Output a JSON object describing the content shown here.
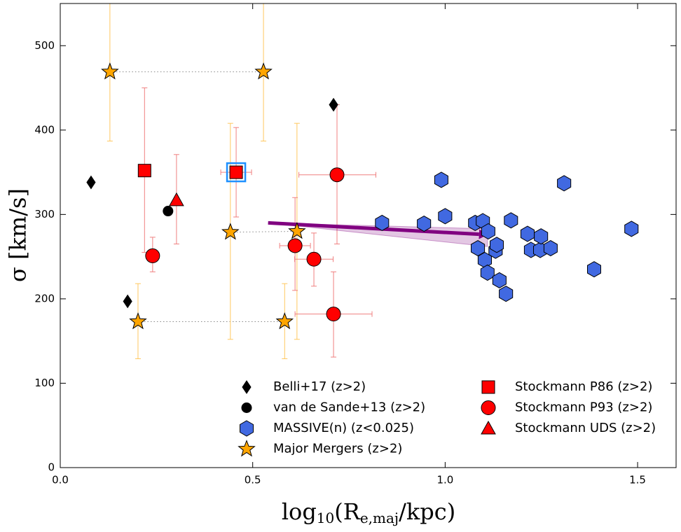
{
  "chart_data": {
    "type": "scatter",
    "xlabel_parts": [
      "log",
      "10",
      "(R",
      "e,maj",
      "/kpc)"
    ],
    "ylabel": "σ [km/s]",
    "xlim": [
      0,
      1.6
    ],
    "ylim": [
      0,
      550
    ],
    "xticks": [
      {
        "value": 0,
        "label": "0.0"
      },
      0.5,
      {
        "value": 1,
        "label": "1.0"
      },
      1.5
    ],
    "yticks": [
      0,
      100,
      200,
      300,
      400,
      500
    ],
    "series": [
      {
        "name": "Belli+17 (z>2)",
        "marker": "diamond",
        "color": "#000000",
        "x": [
          0.08,
          0.175,
          0.71
        ],
        "values": [
          338,
          197,
          430
        ]
      },
      {
        "name": "van de Sande+13 (z>2)",
        "marker": "circle-small",
        "color": "#000000",
        "x": [
          0.28
        ],
        "values": [
          304
        ]
      },
      {
        "name": "MASSIVE(n) (z<0.025)",
        "marker": "hexagon",
        "color": "#4169e1",
        "x": [
          0.836,
          0.945,
          0.99,
          1.0,
          1.078,
          1.098,
          1.112,
          1.085,
          1.103,
          1.11,
          1.131,
          1.134,
          1.141,
          1.158,
          1.171,
          1.214,
          1.223,
          1.247,
          1.249,
          1.274,
          1.309,
          1.387,
          1.484
        ],
        "values": [
          290,
          289,
          341,
          298,
          290,
          292,
          280,
          260,
          246,
          231,
          257,
          264,
          222,
          206,
          293,
          277,
          258,
          258,
          274,
          260,
          337,
          235,
          283
        ]
      },
      {
        "name": "Major Mergers (z>2)",
        "marker": "star",
        "color": "#ffa500",
        "errcolor": "#ffc860",
        "x": [
          0.129,
          0.528,
          0.442,
          0.615,
          0.202,
          0.583
        ],
        "values": [
          469,
          469,
          279,
          280,
          173,
          173
        ],
        "yerr_low": [
          387,
          387,
          152,
          152,
          129,
          129
        ],
        "yerr_high": [
          560,
          560,
          408,
          408,
          218,
          218
        ]
      },
      {
        "name": "Stockmann P86 (z>2)",
        "marker": "square",
        "color": "#ff0000",
        "errcolor": "#f08080",
        "x": [
          0.219,
          0.457
        ],
        "values": [
          352,
          350
        ],
        "xerr_low": [
          0.219,
          0.417
        ],
        "xerr_high": [
          0.219,
          0.497
        ],
        "yerr_low": [
          255,
          297
        ],
        "yerr_high": [
          450,
          403
        ]
      },
      {
        "name": "Stockmann P93 (z>2)",
        "marker": "circle",
        "color": "#ff0000",
        "errcolor": "#f08080",
        "x": [
          0.24,
          0.61,
          0.659,
          0.719,
          0.71
        ],
        "values": [
          251,
          263,
          247,
          347,
          182
        ],
        "xerr_low": [
          0.24,
          0.57,
          0.609,
          0.62,
          0.61
        ],
        "xerr_high": [
          0.24,
          0.65,
          0.709,
          0.82,
          0.81
        ],
        "yerr_low": [
          232,
          210,
          215,
          265,
          131
        ],
        "yerr_high": [
          273,
          320,
          278,
          430,
          232
        ]
      },
      {
        "name": "Stockmann UDS (z>2)",
        "marker": "triangle",
        "color": "#ff0000",
        "errcolor": "#f08080",
        "x": [
          0.302
        ],
        "values": [
          317
        ],
        "yerr_low": [
          265
        ],
        "yerr_high": [
          371
        ]
      }
    ],
    "fit": {
      "x": [
        0.54,
        1.11
      ],
      "values": [
        290,
        276
      ],
      "band_low": [
        290,
        262
      ],
      "band_high": [
        290,
        283
      ],
      "color": "#800080"
    }
  }
}
